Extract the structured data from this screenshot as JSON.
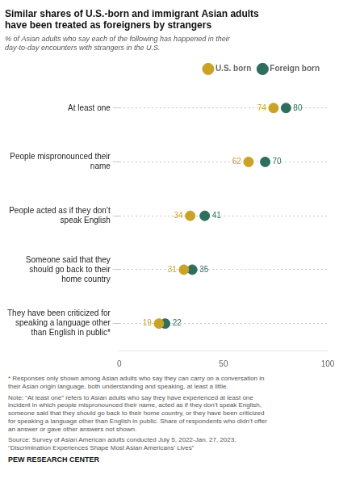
{
  "chart_data": {
    "type": "dot",
    "orientation": "horizontal",
    "title": "Similar shares of U.S.-born and immigrant Asian adults\nhave been treated as foreigners by strangers",
    "subtitle": "% of Asian adults who say each of the following has happened in their\nday-to-day encounters with strangers in the U.S.",
    "categories": [
      "At least one",
      "People mispronounced their\nname",
      "People acted as if they don’t\nspeak English",
      "Someone said that they\nshould go back to their\nhome country",
      "They have been criticized for\nspeaking a language other\nthan English in public*"
    ],
    "series": [
      {
        "name": "U.S. born",
        "color": "#c9a227",
        "values": [
          74,
          62,
          34,
          31,
          19
        ]
      },
      {
        "name": "Foreign born",
        "color": "#2d6e5e",
        "values": [
          80,
          70,
          41,
          35,
          22
        ]
      }
    ],
    "xlim": [
      0,
      100
    ],
    "xticks": [
      0,
      50,
      100
    ],
    "grid": true,
    "legend": "top",
    "data_labels": true,
    "annotations": [
      "* Responses only shown among Asian adults who say they can carry on a conversation in\ntheir Asian origin language, both understanding and speaking, at least a little.",
      "Note: “At least one” refers to Asian adults who say they have experienced at least one\nincident in which people mispronounced their name, acted as if they don’t speak English,\nsomeone said that they should go back to their home country, or they have been criticized\nfor speaking a language other than English in public. Share of respondents who didn’t offer\nan answer or gave other answers not shown.",
      "Source: Survey of Asian American adults conducted July 5, 2022-Jan. 27, 2023.\n“Discrimination Experiences Shape Most Asian Americans’ Lives”",
      "PEW RESEARCH CENTER"
    ]
  }
}
